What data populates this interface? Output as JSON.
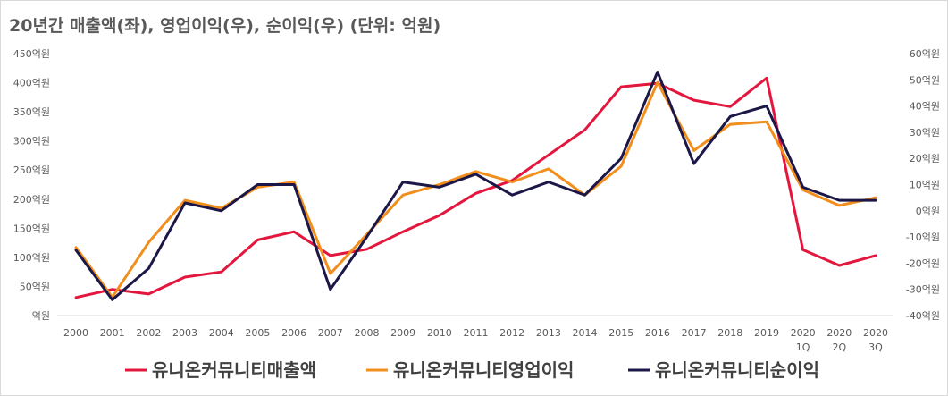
{
  "chart_data": {
    "type": "line",
    "title": "20년간 매출액(좌), 영업이익(우), 순이익(우) (단위: 억원)",
    "categories": [
      "2000",
      "2001",
      "2002",
      "2003",
      "2004",
      "2005",
      "2006",
      "2007",
      "2008",
      "2009",
      "2010",
      "2011",
      "2012",
      "2013",
      "2014",
      "2015",
      "2016",
      "2017",
      "2018",
      "2019",
      "2020\n1Q",
      "2020\n2Q",
      "2020\n3Q"
    ],
    "left_axis": {
      "ylim": [
        0,
        450
      ],
      "ticks": [
        0,
        50,
        100,
        150,
        200,
        250,
        300,
        350,
        400,
        450
      ],
      "tick_labels": [
        "억원",
        "50억원",
        "100억원",
        "150억원",
        "200억원",
        "250억원",
        "300억원",
        "350억원",
        "400억원",
        "450억원"
      ]
    },
    "right_axis": {
      "ylim": [
        -40,
        60
      ],
      "ticks": [
        -40,
        -30,
        -20,
        -10,
        0,
        10,
        20,
        30,
        40,
        50,
        60
      ],
      "tick_labels": [
        "-40억원",
        "-30억원",
        "-20억원",
        "-10억원",
        "0억원",
        "10억원",
        "20억원",
        "30억원",
        "40억원",
        "50억원",
        "60억원"
      ]
    },
    "series": [
      {
        "name": "유니온커뮤니티매출액",
        "axis": "left",
        "color": "#e3173e",
        "values": [
          31,
          45,
          37,
          66,
          75,
          130,
          144,
          103,
          114,
          144,
          172,
          210,
          232,
          276,
          319,
          393,
          399,
          370,
          359,
          408,
          113,
          86,
          103
        ]
      },
      {
        "name": "유니온커뮤니티영업이익",
        "axis": "left_right",
        "color": "#f28e1c",
        "values": [
          -14,
          -33,
          -12,
          4,
          1,
          9,
          11,
          -24,
          -9,
          6,
          10,
          15,
          11,
          16,
          6,
          17,
          49,
          23,
          33,
          34,
          8,
          2,
          5
        ]
      },
      {
        "name": "유니온커뮤니티순이익",
        "axis": "right",
        "color": "#1b1747",
        "values": [
          -15,
          -34,
          -22,
          3,
          0,
          10,
          10,
          -30,
          -10,
          11,
          9,
          14,
          6,
          11,
          6,
          20,
          53,
          18,
          36,
          40,
          9,
          4,
          4
        ]
      }
    ],
    "grid": false,
    "legend_position": "bottom"
  }
}
